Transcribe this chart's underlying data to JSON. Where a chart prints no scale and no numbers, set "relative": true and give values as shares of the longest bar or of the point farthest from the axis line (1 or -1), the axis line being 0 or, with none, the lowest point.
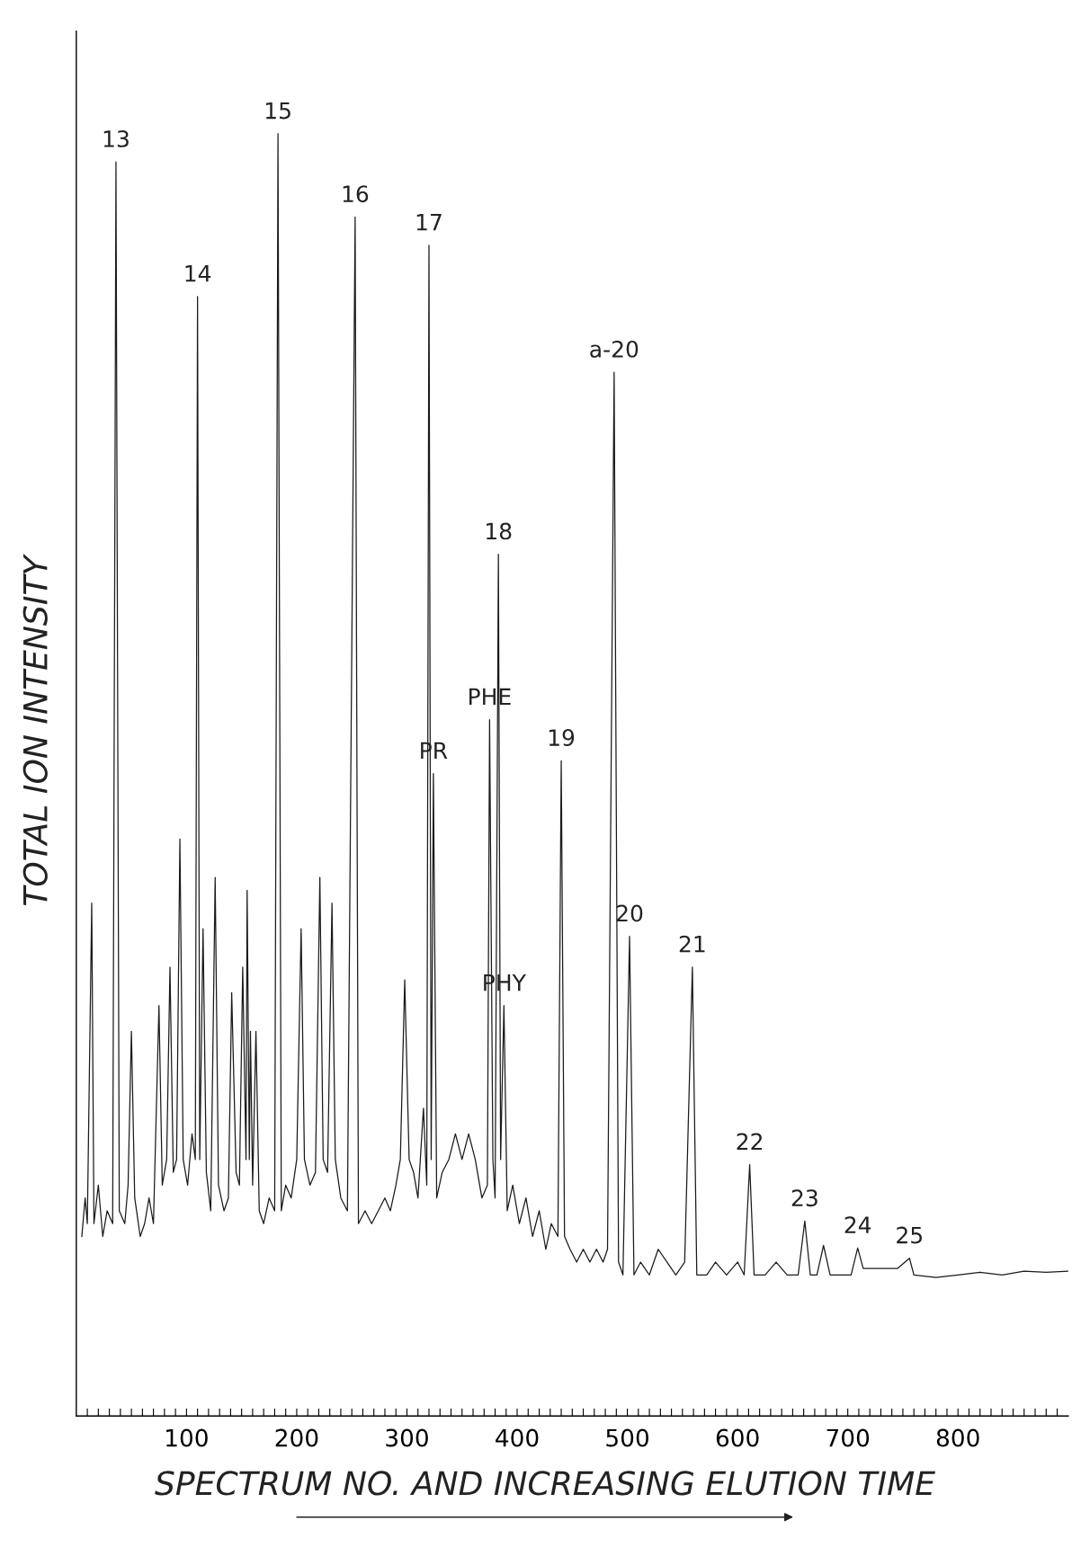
{
  "chart_data": {
    "type": "line",
    "relative": true,
    "xlabel": "SPECTRUM NO. AND INCREASING ELUTION TIME",
    "ylabel": "TOTAL ION INTENSITY",
    "xlim": [
      0,
      900
    ],
    "xticks": [
      {
        "value": 10,
        "label": null
      },
      {
        "value": 20,
        "label": null
      },
      {
        "value": 30,
        "label": null
      },
      {
        "value": 40,
        "label": null
      },
      {
        "value": 50,
        "label": null
      },
      {
        "value": 60,
        "label": null
      },
      {
        "value": 70,
        "label": null
      },
      {
        "value": 80,
        "label": null
      },
      {
        "value": 90,
        "label": null
      },
      100,
      {
        "value": 110,
        "label": null
      },
      {
        "value": 120,
        "label": null
      },
      {
        "value": 130,
        "label": null
      },
      {
        "value": 140,
        "label": null
      },
      {
        "value": 150,
        "label": null
      },
      {
        "value": 160,
        "label": null
      },
      {
        "value": 170,
        "label": null
      },
      {
        "value": 180,
        "label": null
      },
      {
        "value": 190,
        "label": null
      },
      200,
      {
        "value": 210,
        "label": null
      },
      {
        "value": 220,
        "label": null
      },
      {
        "value": 230,
        "label": null
      },
      {
        "value": 240,
        "label": null
      },
      {
        "value": 250,
        "label": null
      },
      {
        "value": 260,
        "label": null
      },
      {
        "value": 270,
        "label": null
      },
      {
        "value": 280,
        "label": null
      },
      {
        "value": 290,
        "label": null
      },
      300,
      {
        "value": 310,
        "label": null
      },
      {
        "value": 320,
        "label": null
      },
      {
        "value": 330,
        "label": null
      },
      {
        "value": 340,
        "label": null
      },
      {
        "value": 350,
        "label": null
      },
      {
        "value": 360,
        "label": null
      },
      {
        "value": 370,
        "label": null
      },
      {
        "value": 380,
        "label": null
      },
      {
        "value": 390,
        "label": null
      },
      400,
      {
        "value": 410,
        "label": null
      },
      {
        "value": 420,
        "label": null
      },
      {
        "value": 430,
        "label": null
      },
      {
        "value": 440,
        "label": null
      },
      {
        "value": 450,
        "label": null
      },
      {
        "value": 460,
        "label": null
      },
      {
        "value": 470,
        "label": null
      },
      {
        "value": 480,
        "label": null
      },
      {
        "value": 490,
        "label": null
      },
      500,
      {
        "value": 510,
        "label": null
      },
      {
        "value": 520,
        "label": null
      },
      {
        "value": 530,
        "label": null
      },
      {
        "value": 540,
        "label": null
      },
      {
        "value": 550,
        "label": null
      },
      {
        "value": 560,
        "label": null
      },
      {
        "value": 570,
        "label": null
      },
      {
        "value": 580,
        "label": null
      },
      {
        "value": 590,
        "label": null
      },
      600,
      {
        "value": 610,
        "label": null
      },
      {
        "value": 620,
        "label": null
      },
      {
        "value": 630,
        "label": null
      },
      {
        "value": 640,
        "label": null
      },
      {
        "value": 650,
        "label": null
      },
      {
        "value": 660,
        "label": null
      },
      {
        "value": 670,
        "label": null
      },
      {
        "value": 680,
        "label": null
      },
      {
        "value": 690,
        "label": null
      },
      700,
      {
        "value": 710,
        "label": null
      },
      {
        "value": 720,
        "label": null
      },
      {
        "value": 730,
        "label": null
      },
      {
        "value": 740,
        "label": null
      },
      {
        "value": 750,
        "label": null
      },
      {
        "value": 760,
        "label": null
      },
      {
        "value": 770,
        "label": null
      },
      {
        "value": 780,
        "label": null
      },
      {
        "value": 790,
        "label": null
      },
      800,
      {
        "value": 810,
        "label": null
      },
      {
        "value": 820,
        "label": null
      },
      {
        "value": 830,
        "label": null
      },
      {
        "value": 840,
        "label": null
      },
      {
        "value": 850,
        "label": null
      },
      {
        "value": 860,
        "label": null
      },
      {
        "value": 870,
        "label": null
      },
      {
        "value": 880,
        "label": null
      },
      {
        "value": 890,
        "label": null
      }
    ],
    "series": [
      {
        "color": "#1a1a1a",
        "x": [
          5,
          8,
          10,
          14,
          16,
          20,
          24,
          28,
          33,
          36,
          39,
          44,
          47,
          50,
          53,
          58,
          62,
          66,
          70,
          75,
          78,
          82,
          85,
          88,
          91,
          94,
          97,
          101,
          105,
          108,
          110,
          112,
          115,
          118,
          122,
          126,
          129,
          134,
          138,
          141,
          145,
          148,
          151,
          154,
          155,
          157,
          158,
          160,
          163,
          166,
          170,
          175,
          180,
          183,
          186,
          190,
          195,
          200,
          204,
          207,
          212,
          217,
          221,
          224,
          228,
          232,
          235,
          240,
          246,
          253,
          256,
          262,
          268,
          274,
          280,
          285,
          290,
          294,
          298,
          302,
          306,
          310,
          315,
          318,
          320,
          322,
          324,
          327,
          332,
          338,
          344,
          350,
          356,
          362,
          368,
          373,
          375,
          378,
          380,
          383,
          385,
          388,
          391,
          396,
          402,
          408,
          414,
          420,
          426,
          431,
          437,
          440,
          443,
          448,
          454,
          460,
          466,
          472,
          478,
          482,
          488,
          492,
          496,
          502,
          506,
          512,
          520,
          528,
          536,
          544,
          552,
          559,
          563,
          572,
          580,
          590,
          600,
          606,
          611,
          615,
          625,
          635,
          645,
          655,
          661,
          666,
          672,
          678,
          684,
          695,
          703,
          709,
          714,
          730,
          745,
          756,
          760,
          780,
          800,
          820,
          840,
          860,
          880,
          900
        ],
        "values": [
          0.14,
          0.17,
          0.15,
          0.4,
          0.15,
          0.18,
          0.14,
          0.16,
          0.15,
          0.978,
          0.16,
          0.15,
          0.18,
          0.3,
          0.17,
          0.14,
          0.15,
          0.17,
          0.15,
          0.32,
          0.18,
          0.2,
          0.35,
          0.19,
          0.2,
          0.45,
          0.2,
          0.18,
          0.22,
          0.2,
          0.873,
          0.2,
          0.38,
          0.19,
          0.16,
          0.42,
          0.18,
          0.16,
          0.17,
          0.33,
          0.19,
          0.18,
          0.35,
          0.2,
          0.41,
          0.2,
          0.3,
          0.18,
          0.3,
          0.16,
          0.15,
          0.17,
          0.16,
          1.0,
          0.16,
          0.18,
          0.17,
          0.2,
          0.38,
          0.2,
          0.18,
          0.19,
          0.42,
          0.2,
          0.19,
          0.4,
          0.2,
          0.17,
          0.16,
          0.935,
          0.15,
          0.16,
          0.15,
          0.16,
          0.17,
          0.16,
          0.18,
          0.2,
          0.34,
          0.2,
          0.19,
          0.17,
          0.24,
          0.18,
          0.913,
          0.2,
          0.501,
          0.17,
          0.19,
          0.2,
          0.22,
          0.2,
          0.22,
          0.2,
          0.17,
          0.18,
          0.543,
          0.2,
          0.17,
          0.672,
          0.2,
          0.32,
          0.16,
          0.18,
          0.15,
          0.17,
          0.14,
          0.16,
          0.13,
          0.15,
          0.14,
          0.511,
          0.14,
          0.13,
          0.12,
          0.13,
          0.12,
          0.13,
          0.12,
          0.13,
          0.814,
          0.12,
          0.11,
          0.374,
          0.11,
          0.12,
          0.11,
          0.13,
          0.12,
          0.11,
          0.12,
          0.35,
          0.11,
          0.11,
          0.12,
          0.11,
          0.12,
          0.11,
          0.196,
          0.11,
          0.11,
          0.12,
          0.11,
          0.11,
          0.152,
          0.11,
          0.11,
          0.133,
          0.11,
          0.11,
          0.11,
          0.131,
          0.115,
          0.115,
          0.115,
          0.123,
          0.11,
          0.108,
          0.11,
          0.112,
          0.11,
          0.113,
          0.112,
          0.113
        ]
      }
    ],
    "annotations": [
      {
        "text": "13",
        "x": 36,
        "y": 0.978
      },
      {
        "text": "14",
        "x": 110,
        "y": 0.873
      },
      {
        "text": "15",
        "x": 183,
        "y": 1.0
      },
      {
        "text": "16",
        "x": 253,
        "y": 0.935
      },
      {
        "text": "17",
        "x": 320,
        "y": 0.913
      },
      {
        "text": "PR",
        "x": 324,
        "y": 0.501
      },
      {
        "text": "PHE",
        "x": 375,
        "y": 0.543
      },
      {
        "text": "18",
        "x": 383,
        "y": 0.672
      },
      {
        "text": "PHY",
        "x": 388,
        "y": 0.32
      },
      {
        "text": "19",
        "x": 440,
        "y": 0.511
      },
      {
        "text": "a-20",
        "x": 488,
        "y": 0.814
      },
      {
        "text": "20",
        "x": 502,
        "y": 0.374
      },
      {
        "text": "21",
        "x": 559,
        "y": 0.35
      },
      {
        "text": "22",
        "x": 611,
        "y": 0.196
      },
      {
        "text": "23",
        "x": 661,
        "y": 0.152
      },
      {
        "text": "24",
        "x": 709,
        "y": 0.131
      },
      {
        "text": "25",
        "x": 756,
        "y": 0.123
      }
    ]
  }
}
